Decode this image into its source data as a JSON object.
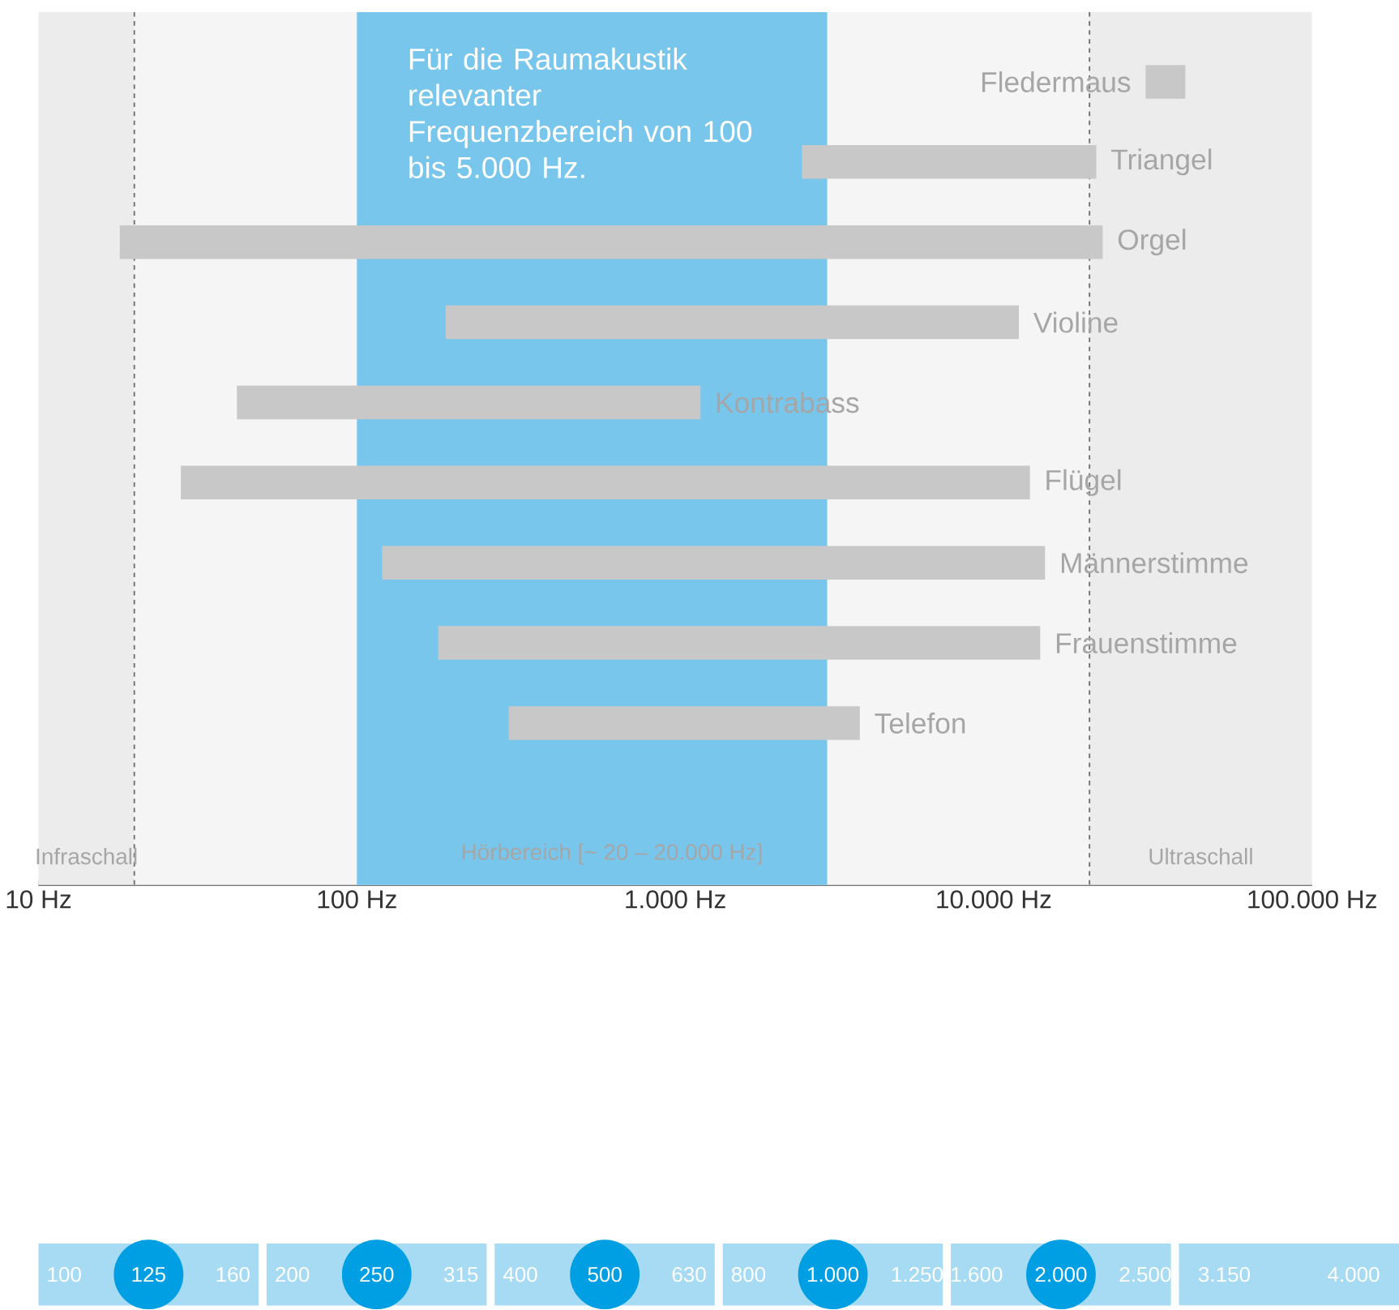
{
  "chart_data": [
    {
      "type": "bar",
      "orientation": "horizontal",
      "log": "x",
      "categories": [
        "Fledermaus",
        "Triangel",
        "Orgel",
        "Violine",
        "Kontrabass",
        "Flügel",
        "Männerstimme",
        "Frauenstimme",
        "Telefon"
      ],
      "base": [
        30000,
        2500,
        18,
        190,
        42,
        28,
        120,
        180,
        300
      ],
      "values": [
        10000,
        18500,
        21982,
        11810,
        1158,
        12972,
        14380,
        13820,
        3500
      ],
      "color": "#c8c8c8",
      "xlim": [
        10,
        100000
      ],
      "xticks": [
        {
          "value": 10,
          "label": "10 Hz"
        },
        {
          "value": 100,
          "label": "100 Hz"
        },
        {
          "value": 1000,
          "label": "1.000 Hz"
        },
        {
          "value": 10000,
          "label": "10.000 Hz"
        },
        {
          "value": 100000,
          "label": "100.000 Hz"
        }
      ],
      "bands": [
        {
          "axis": "x",
          "from": 10,
          "to": 20,
          "label": "Infraschall",
          "color": "#ececec"
        },
        {
          "axis": "x",
          "from": 20,
          "to": 20000,
          "label": "Hörbereich [~ 20 – 20.000 Hz]",
          "color": "#f5f5f5"
        },
        {
          "axis": "x",
          "from": 20000,
          "to": 100000,
          "label": "Ultraschall",
          "color": "#ececec"
        },
        {
          "axis": "x",
          "from": 100,
          "to": 3000,
          "label": "Für die Raumakustik relevanter Frequenzbereich von 100 bis 5.000 Hz.",
          "color": "#78c6ec"
        }
      ],
      "ref_lines": [
        {
          "axis": "x",
          "value": 20,
          "line_style": "dashed",
          "color": "#707070"
        },
        {
          "axis": "x",
          "value": 20000,
          "line_style": "dashed",
          "color": "#707070"
        }
      ]
    },
    {
      "type": "other",
      "categories": [
        "100",
        "125",
        "160",
        "200",
        "250",
        "315",
        "400",
        "500",
        "630",
        "800",
        "1.000",
        "1.250",
        "1.600",
        "2.000",
        "2.500",
        "3.150",
        "4.000"
      ]
    }
  ]
}
